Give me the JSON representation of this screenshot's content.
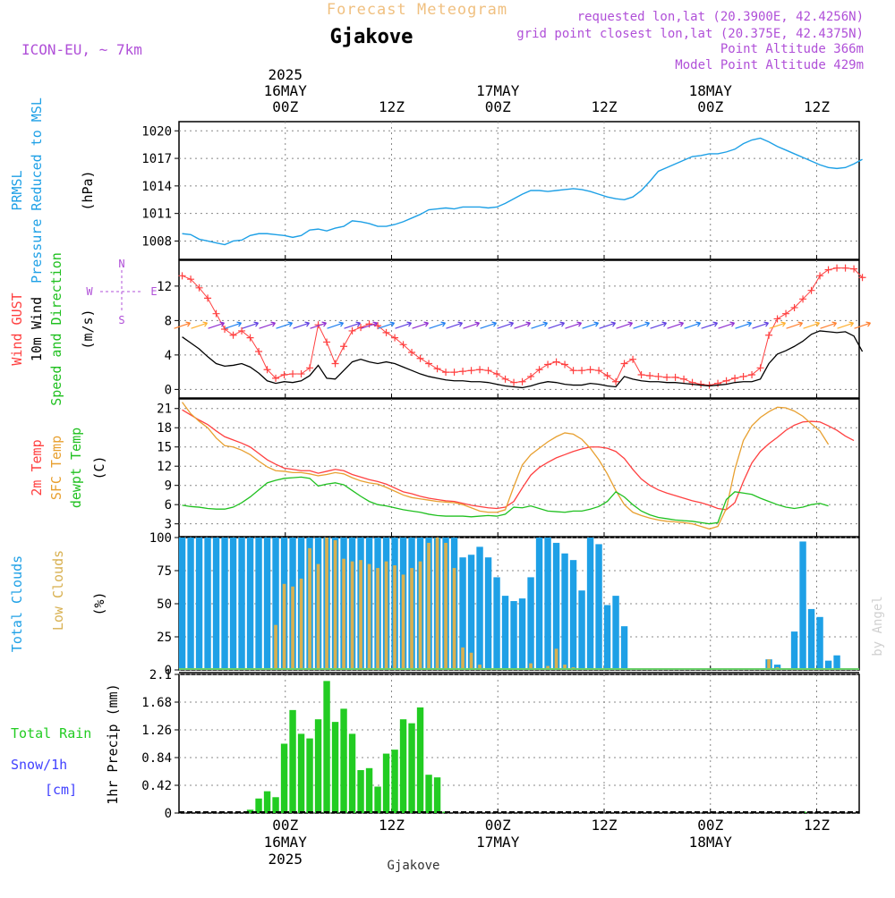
{
  "header": {
    "product": "Forecast Meteogram",
    "model": "ICON-EU, ~ 7km",
    "location": "Gjakove",
    "requested": "requested lon,lat (20.3900E, 42.4256N)",
    "grid": "grid point closest lon,lat (20.375E, 42.4375N)",
    "point_alt": "Point Altitude 366m",
    "model_alt": "Model Point Altitude 429m",
    "credit": "by Angel",
    "footer_location": "Gjakove"
  },
  "colors": {
    "pressure": "#1ea0e6",
    "gust": "#ff4040",
    "wind": "#000000",
    "temp2m": "#ff4040",
    "sfc": "#e8a030",
    "dewpt": "#20c020",
    "total_cloud": "#1ea0e6",
    "low_cloud": "#d8b050",
    "rain": "#22cc22",
    "snow": "#4040ff",
    "label_purple": "#b050d8"
  },
  "time_axis": {
    "start_hour": -10,
    "end_hour": 54,
    "ticks": [
      {
        "hour": 0,
        "label": "00Z",
        "top_lines": [
          "2025",
          "16MAY",
          "00Z"
        ],
        "bottom_lines": [
          "00Z",
          "16MAY",
          "2025"
        ]
      },
      {
        "hour": 10,
        "label": "12Z",
        "top_lines": [
          "12Z"
        ],
        "bottom_lines": [
          "12Z"
        ]
      },
      {
        "hour": 20,
        "label": "00Z",
        "top_lines": [
          "17MAY",
          "00Z"
        ],
        "bottom_lines": [
          "00Z",
          "17MAY"
        ]
      },
      {
        "hour": 30,
        "label": "12Z",
        "top_lines": [
          "12Z"
        ],
        "bottom_lines": [
          "12Z"
        ]
      },
      {
        "hour": 40,
        "label": "00Z",
        "top_lines": [
          "18MAY",
          "00Z"
        ],
        "bottom_lines": [
          "00Z",
          "18MAY"
        ]
      },
      {
        "hour": 50,
        "label": "12Z",
        "top_lines": [
          "12Z"
        ],
        "bottom_lines": [
          "12Z"
        ]
      }
    ]
  },
  "chart_data": [
    {
      "type": "line",
      "id": "pressure",
      "ylabel_lines": [
        "PRMSL",
        "Pressure Reduced to MSL"
      ],
      "unit": "(hPa)",
      "ylim": [
        1006,
        1021
      ],
      "yticks": [
        1008,
        1011,
        1014,
        1017,
        1020
      ],
      "series": [
        {
          "values": [
            1008.8,
            1008.7,
            1008.2,
            1008.0,
            1007.8,
            1007.6,
            1008.0,
            1008.1,
            1008.6,
            1008.8,
            1008.8,
            1008.7,
            1008.6,
            1008.4,
            1008.6,
            1009.2,
            1009.3,
            1009.1,
            1009.4,
            1009.6,
            1010.2,
            1010.1,
            1009.9,
            1009.6,
            1009.6,
            1009.8,
            1010.1,
            1010.5,
            1010.9,
            1011.4,
            1011.5,
            1011.6,
            1011.5,
            1011.7,
            1011.7,
            1011.7,
            1011.6,
            1011.7,
            1012.1,
            1012.6,
            1013.1,
            1013.5,
            1013.5,
            1013.4,
            1013.5,
            1013.6,
            1013.7,
            1013.6,
            1013.4,
            1013.1,
            1012.8,
            1012.6,
            1012.5,
            1012.8,
            1013.5,
            1014.5,
            1015.6,
            1016.0,
            1016.4,
            1016.8,
            1017.2,
            1017.3,
            1017.5,
            1017.5,
            1017.7,
            1018.0,
            1018.6,
            1019.0,
            1019.2,
            1018.8,
            1018.3,
            1017.9,
            1017.5,
            1017.1,
            1016.7,
            1016.3,
            1016.0,
            1015.9,
            1016.0,
            1016.4,
            1016.9
          ]
        }
      ]
    },
    {
      "type": "line",
      "id": "wind",
      "ylabel_lines": [
        "Wind GUST",
        "10m Wind",
        "Speed and Direction"
      ],
      "unit": "(m/s)",
      "compass": {
        "n": "N",
        "s": "S",
        "w": "W",
        "e": "E"
      },
      "ylim": [
        -1,
        15
      ],
      "yticks": [
        0,
        4,
        8,
        12
      ],
      "series": [
        {
          "name": "Wind GUST",
          "values": [
            13.2,
            12.8,
            11.8,
            10.6,
            8.8,
            7.0,
            6.3,
            6.8,
            6.0,
            4.4,
            2.3,
            1.3,
            1.7,
            1.8,
            1.8,
            2.5,
            7.5,
            5.5,
            3.0,
            5.0,
            6.8,
            7.2,
            7.6,
            7.4,
            6.6,
            6.0,
            5.2,
            4.3,
            3.6,
            3.0,
            2.4,
            2.0,
            2.0,
            2.1,
            2.2,
            2.3,
            2.2,
            1.8,
            1.2,
            0.8,
            0.9,
            1.5,
            2.3,
            2.9,
            3.2,
            2.9,
            2.2,
            2.2,
            2.3,
            2.2,
            1.6,
            0.9,
            3.0,
            3.5,
            1.7,
            1.6,
            1.5,
            1.4,
            1.4,
            1.2,
            0.8,
            0.6,
            0.5,
            0.7,
            1.0,
            1.3,
            1.5,
            1.7,
            2.5,
            6.3,
            8.2,
            8.8,
            9.5,
            10.5,
            11.5,
            13.2,
            13.9,
            14.1,
            14.1,
            14.0,
            13.0
          ]
        },
        {
          "name": "10m Wind",
          "values": [
            6.1,
            5.4,
            4.7,
            3.8,
            3.0,
            2.7,
            2.8,
            3.0,
            2.6,
            1.9,
            1.0,
            0.7,
            0.9,
            0.8,
            1.0,
            1.6,
            2.8,
            1.3,
            1.2,
            2.2,
            3.2,
            3.5,
            3.2,
            3.0,
            3.2,
            3.0,
            2.6,
            2.2,
            1.8,
            1.5,
            1.3,
            1.1,
            1.0,
            1.0,
            0.9,
            0.9,
            0.8,
            0.6,
            0.4,
            0.3,
            0.2,
            0.4,
            0.7,
            0.9,
            0.8,
            0.6,
            0.5,
            0.5,
            0.7,
            0.6,
            0.4,
            0.3,
            1.5,
            1.2,
            1.0,
            0.9,
            0.9,
            0.8,
            0.8,
            0.7,
            0.6,
            0.5,
            0.4,
            0.5,
            0.6,
            0.8,
            0.9,
            0.9,
            1.2,
            3.0,
            4.1,
            4.5,
            5.0,
            5.6,
            6.4,
            6.8,
            6.7,
            6.6,
            6.7,
            6.2,
            4.4
          ]
        }
      ]
    },
    {
      "type": "line",
      "id": "temperature",
      "ylabel_lines": [
        "2m Temp",
        "SFC Temp",
        "dewpt Temp"
      ],
      "unit": "(C)",
      "ylim": [
        1,
        22.5
      ],
      "yticks": [
        3,
        6,
        9,
        12,
        15,
        18,
        21
      ],
      "series": [
        {
          "name": "2m Temp",
          "values": [
            20.8,
            20.0,
            19.2,
            18.5,
            17.5,
            16.6,
            16.1,
            15.6,
            15.0,
            14.0,
            13.0,
            12.3,
            11.7,
            11.5,
            11.3,
            11.3,
            10.9,
            11.2,
            11.5,
            11.3,
            10.7,
            10.3,
            9.9,
            9.6,
            9.2,
            8.6,
            8.0,
            7.7,
            7.3,
            7.0,
            6.8,
            6.6,
            6.5,
            6.2,
            5.9,
            5.7,
            5.5,
            5.4,
            5.6,
            6.5,
            8.6,
            10.6,
            11.8,
            12.6,
            13.3,
            13.8,
            14.3,
            14.7,
            15.0,
            15.0,
            14.8,
            14.3,
            13.2,
            11.5,
            10.0,
            9.0,
            8.3,
            7.8,
            7.4,
            7.0,
            6.6,
            6.3,
            5.9,
            5.4,
            5.2,
            6.3,
            9.6,
            12.5,
            14.3,
            15.5,
            16.5,
            17.6,
            18.4,
            18.9,
            19.0,
            18.9,
            18.3,
            17.6,
            16.7,
            16.0
          ]
        },
        {
          "name": "SFC Temp",
          "values": [
            22.0,
            20.2,
            19.0,
            18.0,
            16.4,
            15.2,
            15.0,
            14.5,
            13.8,
            12.8,
            11.9,
            11.3,
            11.2,
            11.0,
            11.0,
            10.8,
            10.5,
            10.7,
            11.0,
            10.8,
            10.2,
            9.7,
            9.4,
            9.2,
            8.7,
            8.1,
            7.5,
            7.1,
            6.9,
            6.7,
            6.5,
            6.4,
            6.3,
            6.0,
            5.5,
            5.0,
            4.8,
            4.8,
            5.2,
            8.8,
            12.2,
            13.8,
            14.8,
            15.8,
            16.6,
            17.2,
            17.0,
            16.2,
            14.8,
            13.0,
            10.8,
            8.2,
            6.0,
            4.8,
            4.3,
            3.9,
            3.6,
            3.4,
            3.3,
            3.2,
            3.0,
            2.6,
            2.2,
            2.6,
            5.4,
            11.5,
            16.0,
            18.3,
            19.6,
            20.5,
            21.2,
            21.1,
            20.6,
            19.8,
            18.6,
            17.5,
            15.4
          ]
        },
        {
          "name": "dewpt Temp",
          "values": [
            5.9,
            5.7,
            5.6,
            5.4,
            5.3,
            5.3,
            5.6,
            6.3,
            7.2,
            8.3,
            9.4,
            9.8,
            10.1,
            10.2,
            10.3,
            10.1,
            8.9,
            9.2,
            9.4,
            9.1,
            8.2,
            7.3,
            6.5,
            6.0,
            5.8,
            5.5,
            5.2,
            5.0,
            4.8,
            4.5,
            4.3,
            4.2,
            4.2,
            4.2,
            4.1,
            4.2,
            4.3,
            4.2,
            4.5,
            5.6,
            5.5,
            5.8,
            5.4,
            5.0,
            4.9,
            4.8,
            5.0,
            5.0,
            5.3,
            5.7,
            6.5,
            8.0,
            7.2,
            6.0,
            5.0,
            4.4,
            4.0,
            3.8,
            3.6,
            3.5,
            3.4,
            3.2,
            3.0,
            3.2,
            6.8,
            8.0,
            7.8,
            7.6,
            7.0,
            6.5,
            6.0,
            5.6,
            5.4,
            5.6,
            6.0,
            6.2,
            5.8
          ]
        }
      ]
    },
    {
      "type": "bar",
      "id": "clouds",
      "ylabel_lines": [
        "Total Clouds",
        "Low Clouds"
      ],
      "unit": "(%)",
      "ylim": [
        0,
        100
      ],
      "yticks": [
        0,
        25,
        50,
        75,
        100
      ],
      "series": [
        {
          "name": "Total Clouds",
          "values": [
            100,
            100,
            100,
            100,
            100,
            100,
            100,
            100,
            100,
            100,
            100,
            100,
            100,
            100,
            100,
            100,
            100,
            100,
            100,
            100,
            100,
            100,
            100,
            100,
            100,
            100,
            100,
            100,
            100,
            100,
            100,
            100,
            100,
            85,
            87,
            93,
            85,
            70,
            56,
            52,
            54,
            70,
            100,
            100,
            96,
            88,
            83,
            60,
            100,
            95,
            49,
            56,
            33,
            0,
            0,
            0,
            0,
            0,
            0,
            0,
            0,
            0,
            0,
            0,
            0,
            0,
            0,
            0,
            0,
            8,
            4,
            0,
            29,
            97,
            46,
            40,
            7,
            11
          ]
        },
        {
          "name": "Low Clouds",
          "values": [
            0,
            0,
            0,
            0,
            0,
            0,
            0,
            0,
            0,
            0,
            0,
            34,
            65,
            63,
            69,
            92,
            80,
            100,
            98,
            84,
            82,
            83,
            80,
            77,
            82,
            79,
            72,
            77,
            82,
            96,
            100,
            96,
            77,
            17,
            13,
            4,
            0,
            0,
            0,
            0,
            0,
            5,
            0,
            3,
            16,
            4,
            2,
            0,
            0,
            0,
            0,
            0,
            0,
            0,
            0,
            0,
            0,
            0,
            0,
            0,
            0,
            0,
            0,
            0,
            0,
            0,
            0,
            0,
            0,
            8,
            2,
            0,
            0,
            0,
            0,
            0,
            0,
            0
          ]
        }
      ]
    },
    {
      "type": "bar",
      "id": "precip",
      "ylabel_lines": [
        "1hr Precip (mm)"
      ],
      "legend_lines": [
        "Total  Rain",
        "Snow/1h",
        "[cm]"
      ],
      "ylim": [
        0,
        2.1
      ],
      "yticks": [
        0,
        0.42,
        0.84,
        1.26,
        1.68,
        2.1
      ],
      "ytick_labels": [
        "0",
        "0.42",
        "0.84",
        "1.26",
        "1.68",
        "2.1"
      ],
      "series": [
        {
          "name": "Total Rain",
          "values": [
            0,
            0,
            0,
            0,
            0,
            0,
            0,
            0,
            0.05,
            0.22,
            0.33,
            0.24,
            1.05,
            1.56,
            1.2,
            1.13,
            1.42,
            2.0,
            1.38,
            1.58,
            1.2,
            0.65,
            0.68,
            0.4,
            0.9,
            0.96,
            1.42,
            1.36,
            1.6,
            0.58,
            0.54,
            0.02,
            0,
            0,
            0,
            0,
            0,
            0,
            0,
            0,
            0,
            0,
            0,
            0,
            0,
            0,
            0,
            0,
            0,
            0,
            0,
            0,
            0,
            0,
            0,
            0,
            0,
            0,
            0,
            0,
            0,
            0,
            0,
            0,
            0,
            0,
            0,
            0,
            0,
            0,
            0,
            0,
            0,
            0.02,
            0,
            0,
            0,
            0
          ]
        }
      ]
    }
  ]
}
